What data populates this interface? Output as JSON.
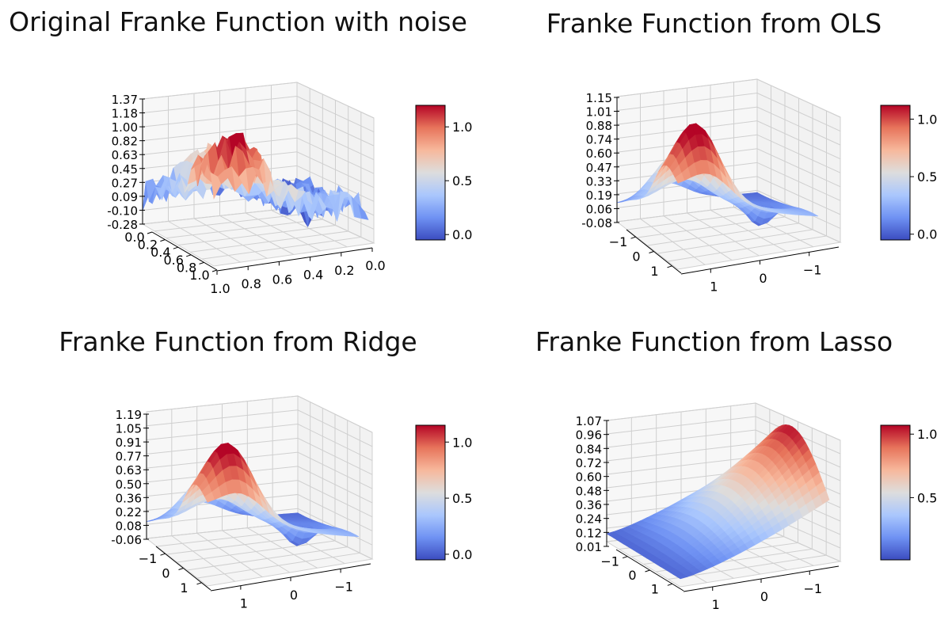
{
  "colormap": {
    "name": "coolwarm",
    "stops": [
      "#3b4cc0",
      "#6f92f3",
      "#aac7fd",
      "#dddddd",
      "#f7b89c",
      "#e7745b",
      "#b40426"
    ]
  },
  "chart_data": [
    {
      "type": "surface3d",
      "title": "Original Franke Function with noise",
      "function": "Franke function with added noise",
      "noisy": true,
      "zticks": [
        "1.37",
        "1.18",
        "1.00",
        "0.82",
        "0.63",
        "0.45",
        "0.27",
        "0.09",
        "-0.10",
        "-0.28"
      ],
      "zlim": [
        -0.28,
        1.37
      ],
      "xticks": [
        "0.0",
        "0.2",
        "0.4",
        "0.6",
        "0.8",
        "1.0"
      ],
      "yticks": [
        "1.0",
        "0.8",
        "0.6",
        "0.4",
        "0.2",
        "0.0"
      ],
      "colorbar": {
        "ticks": [
          "0.0",
          "0.5",
          "1.0"
        ],
        "range": [
          -0.05,
          1.2
        ]
      }
    },
    {
      "type": "surface3d",
      "title": "Franke Function from OLS",
      "function": "OLS polynomial fit of Franke function",
      "noisy": false,
      "zticks": [
        "1.15",
        "1.01",
        "0.88",
        "0.74",
        "0.60",
        "0.47",
        "0.33",
        "0.19",
        "0.06",
        "-0.08"
      ],
      "zlim": [
        -0.08,
        1.15
      ],
      "xticks": [
        "−1",
        "0",
        "1"
      ],
      "yticks": [
        "1",
        "0",
        "−1"
      ],
      "colorbar": {
        "ticks": [
          "0.0",
          "0.5",
          "1.0"
        ],
        "range": [
          -0.05,
          1.12
        ]
      }
    },
    {
      "type": "surface3d",
      "title": "Franke Function from Ridge",
      "function": "Ridge polynomial fit of Franke function",
      "noisy": false,
      "zticks": [
        "1.19",
        "1.05",
        "0.91",
        "0.77",
        "0.63",
        "0.50",
        "0.36",
        "0.22",
        "0.08",
        "-0.06"
      ],
      "zlim": [
        -0.06,
        1.19
      ],
      "xticks": [
        "−1",
        "0",
        "1"
      ],
      "yticks": [
        "1",
        "0",
        "−1"
      ],
      "colorbar": {
        "ticks": [
          "0.0",
          "0.5",
          "1.0"
        ],
        "range": [
          -0.05,
          1.15
        ]
      }
    },
    {
      "type": "surface3d",
      "title": "Franke Function from Lasso",
      "function": "Lasso polynomial fit of Franke function",
      "noisy": false,
      "zticks": [
        "1.07",
        "0.96",
        "0.84",
        "0.72",
        "0.60",
        "0.48",
        "0.36",
        "0.24",
        "0.12",
        "0.01"
      ],
      "zlim": [
        0.01,
        1.07
      ],
      "xticks": [
        "−1",
        "0",
        "1"
      ],
      "yticks": [
        "1",
        "0",
        "−1"
      ],
      "colorbar": {
        "ticks": [
          "0.5",
          "1.0"
        ],
        "range": [
          0.01,
          1.07
        ]
      }
    }
  ]
}
